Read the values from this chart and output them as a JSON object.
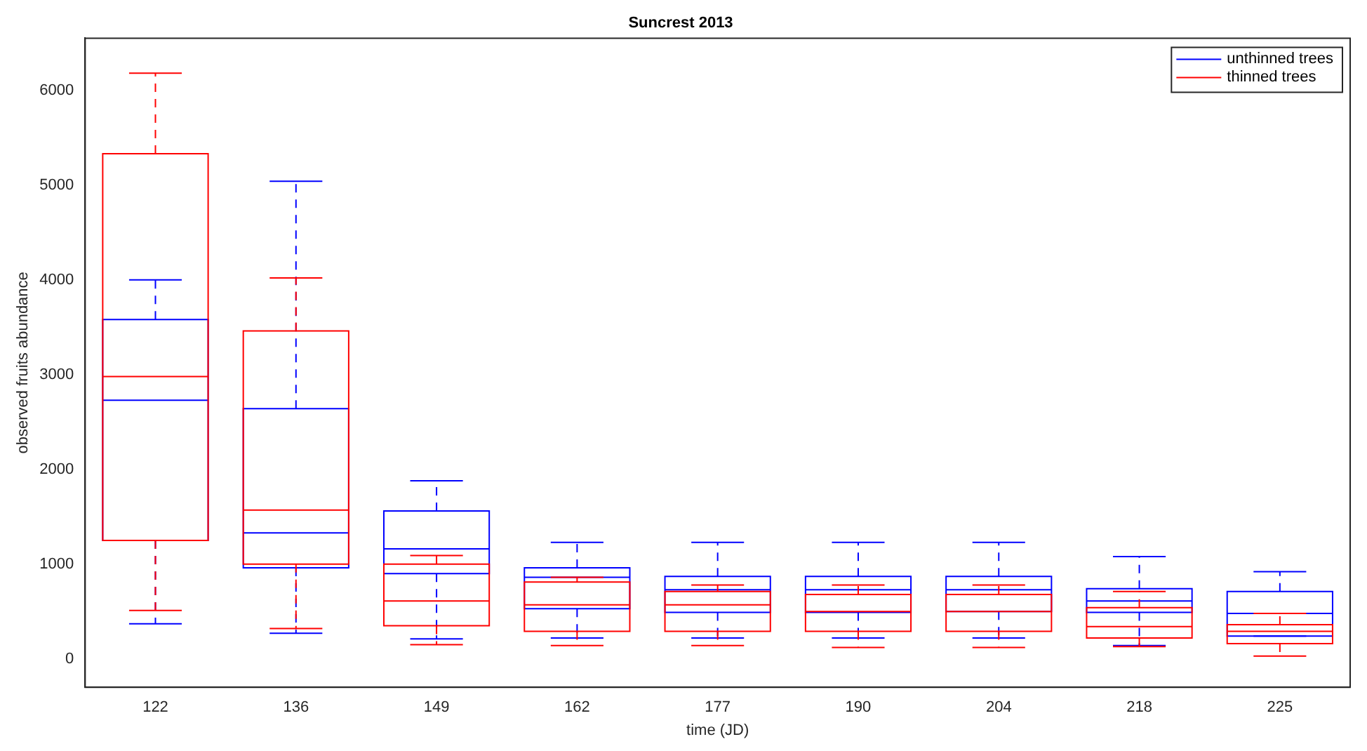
{
  "chart_data": {
    "type": "box",
    "title": "Suncrest 2013",
    "xlabel": "time (JD)",
    "ylabel": "observed fruits abundance",
    "categories": [
      "122",
      "136",
      "149",
      "162",
      "177",
      "190",
      "204",
      "218",
      "225"
    ],
    "series": [
      {
        "name": "unthinned trees",
        "color": "#0000ff",
        "boxes": [
          {
            "low": 370,
            "q1": 1250,
            "median": 2730,
            "q3": 3580,
            "high": 4000
          },
          {
            "low": 270,
            "q1": 960,
            "median": 1330,
            "q3": 2640,
            "high": 5040
          },
          {
            "low": 210,
            "q1": 900,
            "median": 1160,
            "q3": 1560,
            "high": 1880
          },
          {
            "low": 220,
            "q1": 530,
            "median": 860,
            "q3": 960,
            "high": 1230
          },
          {
            "low": 220,
            "q1": 490,
            "median": 730,
            "q3": 870,
            "high": 1230
          },
          {
            "low": 220,
            "q1": 490,
            "median": 730,
            "q3": 870,
            "high": 1230
          },
          {
            "low": 220,
            "q1": 500,
            "median": 730,
            "q3": 870,
            "high": 1230
          },
          {
            "low": 140,
            "q1": 490,
            "median": 610,
            "q3": 740,
            "high": 1080
          },
          {
            "low": 240,
            "q1": 240,
            "median": 480,
            "q3": 710,
            "high": 920
          }
        ]
      },
      {
        "name": "thinned trees",
        "color": "#ff0000",
        "boxes": [
          {
            "low": 510,
            "q1": 1250,
            "median": 2980,
            "q3": 5330,
            "high": 6180
          },
          {
            "low": 320,
            "q1": 1000,
            "median": 1570,
            "q3": 3460,
            "high": 4020
          },
          {
            "low": 150,
            "q1": 350,
            "median": 610,
            "q3": 1000,
            "high": 1090
          },
          {
            "low": 140,
            "q1": 290,
            "median": 570,
            "q3": 810,
            "high": 860
          },
          {
            "low": 140,
            "q1": 290,
            "median": 570,
            "q3": 710,
            "high": 780
          },
          {
            "low": 120,
            "q1": 290,
            "median": 500,
            "q3": 680,
            "high": 780
          },
          {
            "low": 120,
            "q1": 290,
            "median": 500,
            "q3": 680,
            "high": 780
          },
          {
            "low": 130,
            "q1": 220,
            "median": 340,
            "q3": 540,
            "high": 710
          },
          {
            "low": 30,
            "q1": 160,
            "median": 290,
            "q3": 360,
            "high": 480
          }
        ]
      }
    ],
    "ylim": [
      -300,
      6550
    ],
    "yticks": [
      0,
      1000,
      2000,
      3000,
      4000,
      5000,
      6000
    ],
    "legend": "top right"
  }
}
